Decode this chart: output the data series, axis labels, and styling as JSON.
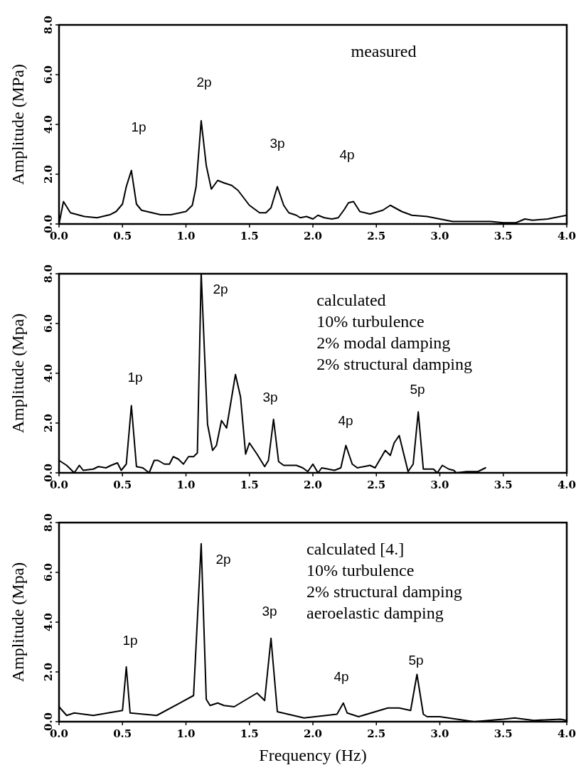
{
  "chart_data": [
    {
      "type": "line",
      "ylabel": "Amplitude (MPa)",
      "xlim": [
        0,
        4
      ],
      "ylim": [
        0,
        8
      ],
      "xticks": [
        {
          "value": 0,
          "label": "0.0"
        },
        {
          "value": 0.5,
          "label": "0.5"
        },
        {
          "value": 1,
          "label": "1.0"
        },
        {
          "value": 1.5,
          "label": "1.5"
        },
        {
          "value": 2,
          "label": "2.0"
        },
        {
          "value": 2.5,
          "label": "2.5"
        },
        {
          "value": 3,
          "label": "3.0"
        },
        {
          "value": 3.5,
          "label": "3.5"
        },
        {
          "value": 4,
          "label": "4.0"
        }
      ],
      "yticks": [
        {
          "value": 0,
          "label": "0.0"
        },
        {
          "value": 2,
          "label": "2.0"
        },
        {
          "value": 4,
          "label": "4.0"
        },
        {
          "value": 6,
          "label": "6.0"
        },
        {
          "value": 8,
          "label": "8.0"
        }
      ],
      "series": [
        {
          "color": "#000000",
          "x": [
            0,
            0.035,
            0.09,
            0.2,
            0.3,
            0.4,
            0.45,
            0.5,
            0.53,
            0.57,
            0.61,
            0.65,
            0.8,
            0.88,
            1.0,
            1.05,
            1.08,
            1.12,
            1.16,
            1.2,
            1.25,
            1.3,
            1.36,
            1.41,
            1.5,
            1.58,
            1.63,
            1.67,
            1.72,
            1.77,
            1.81,
            1.87,
            1.9,
            1.95,
            2.0,
            2.04,
            2.09,
            2.15,
            2.2,
            2.25,
            2.28,
            2.32,
            2.37,
            2.45,
            2.55,
            2.61,
            2.7,
            2.78,
            2.9,
            3.0,
            3.1,
            3.2,
            3.4,
            3.5,
            3.6,
            3.67,
            3.73,
            3.85,
            4.0
          ],
          "values": [
            0,
            0.9,
            0.45,
            0.3,
            0.25,
            0.37,
            0.5,
            0.8,
            1.5,
            2.15,
            0.8,
            0.55,
            0.37,
            0.37,
            0.5,
            0.75,
            1.5,
            4.15,
            2.35,
            1.4,
            1.75,
            1.65,
            1.55,
            1.35,
            0.75,
            0.45,
            0.45,
            0.65,
            1.5,
            0.75,
            0.45,
            0.35,
            0.25,
            0.3,
            0.2,
            0.35,
            0.25,
            0.2,
            0.25,
            0.6,
            0.85,
            0.9,
            0.5,
            0.4,
            0.55,
            0.75,
            0.5,
            0.35,
            0.3,
            0.2,
            0.1,
            0.1,
            0.1,
            0.05,
            0.05,
            0.2,
            0.15,
            0.2,
            0.35
          ]
        }
      ],
      "annotations": [
        "measured",
        "1p",
        "2p",
        "3p",
        "4p"
      ]
    },
    {
      "type": "line",
      "ylabel": "Amplitude (Mpa)",
      "xlim": [
        0,
        4
      ],
      "ylim": [
        0,
        8
      ],
      "xticks": [
        {
          "value": 0,
          "label": "0.0"
        },
        {
          "value": 0.5,
          "label": "0.5"
        },
        {
          "value": 1,
          "label": "1.0"
        },
        {
          "value": 1.5,
          "label": "1.5"
        },
        {
          "value": 2,
          "label": "2.0"
        },
        {
          "value": 2.5,
          "label": "2.5"
        },
        {
          "value": 3,
          "label": "3.0"
        },
        {
          "value": 3.5,
          "label": "3.5"
        },
        {
          "value": 4,
          "label": "4.0"
        }
      ],
      "yticks": [
        {
          "value": 0,
          "label": "0.0"
        },
        {
          "value": 2,
          "label": "2.0"
        },
        {
          "value": 4,
          "label": "4.0"
        },
        {
          "value": 6,
          "label": "6.0"
        },
        {
          "value": 8,
          "label": "8.0"
        }
      ],
      "series": [
        {
          "color": "#000000",
          "x": [
            0,
            0.06,
            0.12,
            0.16,
            0.19,
            0.27,
            0.31,
            0.37,
            0.41,
            0.46,
            0.49,
            0.53,
            0.57,
            0.61,
            0.66,
            0.71,
            0.75,
            0.78,
            0.83,
            0.87,
            0.9,
            0.94,
            0.98,
            1.02,
            1.06,
            1.09,
            1.12,
            1.17,
            1.21,
            1.24,
            1.28,
            1.32,
            1.39,
            1.43,
            1.47,
            1.5,
            1.56,
            1.62,
            1.65,
            1.69,
            1.73,
            1.77,
            1.83,
            1.87,
            1.92,
            1.96,
            2.0,
            2.04,
            2.07,
            2.17,
            2.22,
            2.26,
            2.31,
            2.35,
            2.45,
            2.49,
            2.57,
            2.61,
            2.64,
            2.68,
            2.75,
            2.79,
            2.83,
            2.87,
            2.95,
            2.98,
            3.02,
            3.07,
            3.11,
            3.13,
            3.21,
            3.3,
            3.36
          ],
          "values": [
            0.5,
            0.3,
            0,
            0.3,
            0.1,
            0.15,
            0.25,
            0.2,
            0.3,
            0.4,
            0.1,
            0.35,
            2.7,
            0.25,
            0.2,
            0,
            0.5,
            0.5,
            0.35,
            0.35,
            0.65,
            0.55,
            0.35,
            0.65,
            0.65,
            0.8,
            8.0,
            1.95,
            0.9,
            1.1,
            2.1,
            1.8,
            3.95,
            3.05,
            0.75,
            1.2,
            0.75,
            0.25,
            0.5,
            2.15,
            0.45,
            0.3,
            0.3,
            0.3,
            0.2,
            0.05,
            0.35,
            0,
            0.2,
            0.1,
            0.2,
            1.1,
            0.35,
            0.2,
            0.3,
            0.2,
            0.9,
            0.7,
            1.2,
            1.5,
            0.05,
            0.35,
            2.45,
            0.15,
            0.15,
            0,
            0.3,
            0.15,
            0.1,
            0,
            0.05,
            0.05,
            0.2
          ]
        }
      ],
      "annotations": [
        "calculated",
        "10% turbulence",
        "2% modal damping",
        "2% structural damping",
        "1p",
        "2p",
        "3p",
        "4p",
        "5p"
      ]
    },
    {
      "type": "line",
      "xlabel": "Frequency (Hz)",
      "ylabel": "Amplitude (Mpa)",
      "xlim": [
        0,
        4
      ],
      "ylim": [
        0,
        8
      ],
      "xticks": [
        {
          "value": 0,
          "label": "0.0"
        },
        {
          "value": 0.5,
          "label": "0.5"
        },
        {
          "value": 1,
          "label": "1.0"
        },
        {
          "value": 1.5,
          "label": "1.5"
        },
        {
          "value": 2,
          "label": "2.0"
        },
        {
          "value": 2.5,
          "label": "2.5"
        },
        {
          "value": 3,
          "label": "3.0"
        },
        {
          "value": 3.5,
          "label": "3.5"
        },
        {
          "value": 4,
          "label": "4.0"
        }
      ],
      "yticks": [
        {
          "value": 0,
          "label": "0.0"
        },
        {
          "value": 2,
          "label": "2.0"
        },
        {
          "value": 4,
          "label": "4.0"
        },
        {
          "value": 6,
          "label": "6.0"
        },
        {
          "value": 8,
          "label": "8.0"
        }
      ],
      "series": [
        {
          "color": "#000000",
          "x": [
            0,
            0.06,
            0.12,
            0.27,
            0.5,
            0.53,
            0.56,
            0.77,
            1.06,
            1.12,
            1.16,
            1.19,
            1.25,
            1.3,
            1.38,
            1.56,
            1.62,
            1.67,
            1.72,
            1.93,
            2.19,
            2.24,
            2.27,
            2.36,
            2.59,
            2.68,
            2.77,
            2.82,
            2.87,
            2.9,
            3.0,
            3.27,
            3.5,
            3.59,
            3.74,
            3.95,
            4.0
          ],
          "values": [
            0.6,
            0.25,
            0.35,
            0.25,
            0.45,
            2.2,
            0.35,
            0.25,
            1.05,
            7.15,
            0.9,
            0.65,
            0.75,
            0.65,
            0.6,
            1.15,
            0.85,
            3.35,
            0.4,
            0.15,
            0.3,
            0.75,
            0.35,
            0.2,
            0.55,
            0.55,
            0.45,
            1.9,
            0.3,
            0.2,
            0.2,
            0,
            0.1,
            0.15,
            0.05,
            0.1,
            0.05
          ]
        }
      ],
      "annotations": [
        "calculated [4.]",
        "10% turbulence",
        "2% structural damping",
        "aeroelastic damping",
        "1p",
        "2p",
        "3p",
        "4p",
        "5p"
      ]
    }
  ]
}
